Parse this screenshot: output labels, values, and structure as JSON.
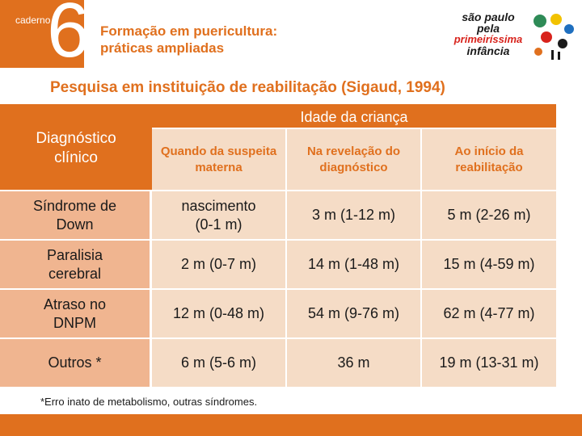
{
  "badge": {
    "word": "caderno",
    "number": "6"
  },
  "header": {
    "title_line1": "Formação em puericultura:",
    "title_line2": "práticas ampliadas"
  },
  "logo": {
    "line1": "são paulo",
    "line2": "pela",
    "line3": "primeiríssima",
    "line4": "infância",
    "accent": "#d8231c",
    "dot_colors": [
      "#2e8b57",
      "#f2c200",
      "#1f6fbf",
      "#d8231c",
      "#1a1a1a",
      "#e0701e"
    ]
  },
  "subtitle": "Pesquisa em instituição de reabilitação (Sigaud, 1994)",
  "table": {
    "corner": "Diagnóstico clínico",
    "group_header": "Idade da criança",
    "columns": [
      "Quando da suspeita materna",
      "Na revelação do diagnóstico",
      "Ao início da reabilitação"
    ],
    "rows": [
      {
        "label": "Síndrome de Down",
        "values": [
          "nascimento (0-1 m)",
          "3 m (1-12 m)",
          "5 m (2-26 m)"
        ]
      },
      {
        "label": "Paralisia cerebral",
        "values": [
          "2 m (0-7 m)",
          "14 m (1-48 m)",
          "15 m (4-59 m)"
        ]
      },
      {
        "label": "Atraso no DNPM",
        "values": [
          "12 m (0-48 m)",
          "54 m (9-76 m)",
          "62 m (4-77 m)"
        ]
      },
      {
        "label": "Outros *",
        "values": [
          "6 m (5-6 m)",
          "36 m",
          "19 m (13-31 m)"
        ]
      }
    ]
  },
  "footnote": "*Erro inato de metabolismo, outras síndromes.",
  "colors": {
    "accent_orange": "#e0701e",
    "light_cell": "#f5dcc6",
    "label_cell": "#f0b590"
  }
}
